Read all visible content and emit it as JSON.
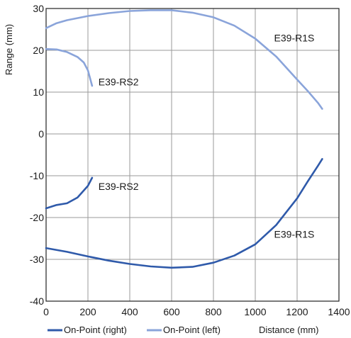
{
  "chart_data": {
    "type": "line",
    "ylabel": "Range (mm)",
    "xlabel": "Distance (mm)",
    "xlim": [
      0,
      1400
    ],
    "ylim": [
      -40,
      30
    ],
    "x_ticks": [
      0,
      200,
      400,
      600,
      800,
      1000,
      1200,
      1400
    ],
    "y_ticks": [
      30,
      20,
      10,
      0,
      -10,
      -20,
      -30,
      -40
    ],
    "grid": true,
    "legend": [
      {
        "label": "On-Point (right)",
        "color": "#2f5aaa"
      },
      {
        "label": "On-Point (left)",
        "color": "#8aa4da"
      }
    ],
    "series": [
      {
        "group": "On-Point (left)",
        "color": "#8aa4da",
        "x": [
          0,
          50,
          100,
          200,
          300,
          400,
          500,
          600,
          700,
          800,
          900,
          1000,
          1100,
          1200,
          1250,
          1300,
          1320
        ],
        "y": [
          25.3,
          26.5,
          27.2,
          28.2,
          28.9,
          29.4,
          29.6,
          29.6,
          29.0,
          27.9,
          25.9,
          22.8,
          18.5,
          13.0,
          10.3,
          7.4,
          6.0
        ]
      },
      {
        "group": "On-Point (left)",
        "color": "#8aa4da",
        "x": [
          0,
          50,
          100,
          150,
          180,
          200,
          220
        ],
        "y": [
          20.3,
          20.2,
          19.6,
          18.4,
          17.1,
          15.2,
          11.5
        ]
      },
      {
        "group": "On-Point (right)",
        "color": "#2f5aaa",
        "x": [
          0,
          50,
          100,
          150,
          200,
          220
        ],
        "y": [
          -17.8,
          -17.0,
          -16.6,
          -15.2,
          -12.4,
          -10.5
        ]
      },
      {
        "group": "On-Point (right)",
        "color": "#2f5aaa",
        "x": [
          0,
          100,
          200,
          300,
          400,
          500,
          600,
          700,
          800,
          900,
          1000,
          1100,
          1200,
          1250,
          1300,
          1320
        ],
        "y": [
          -27.3,
          -28.2,
          -29.3,
          -30.3,
          -31.1,
          -31.7,
          -32.0,
          -31.8,
          -30.8,
          -29.1,
          -26.4,
          -21.8,
          -15.4,
          -11.4,
          -7.6,
          -6.0
        ]
      }
    ],
    "annotations": [
      {
        "text": "E39-R1S",
        "x": 1090,
        "y": 23
      },
      {
        "text": "E39-RS2",
        "x": 250,
        "y": 12.5
      },
      {
        "text": "E39-RS2",
        "x": 250,
        "y": -12.5
      },
      {
        "text": "E39-R1S",
        "x": 1090,
        "y": -24
      }
    ]
  }
}
